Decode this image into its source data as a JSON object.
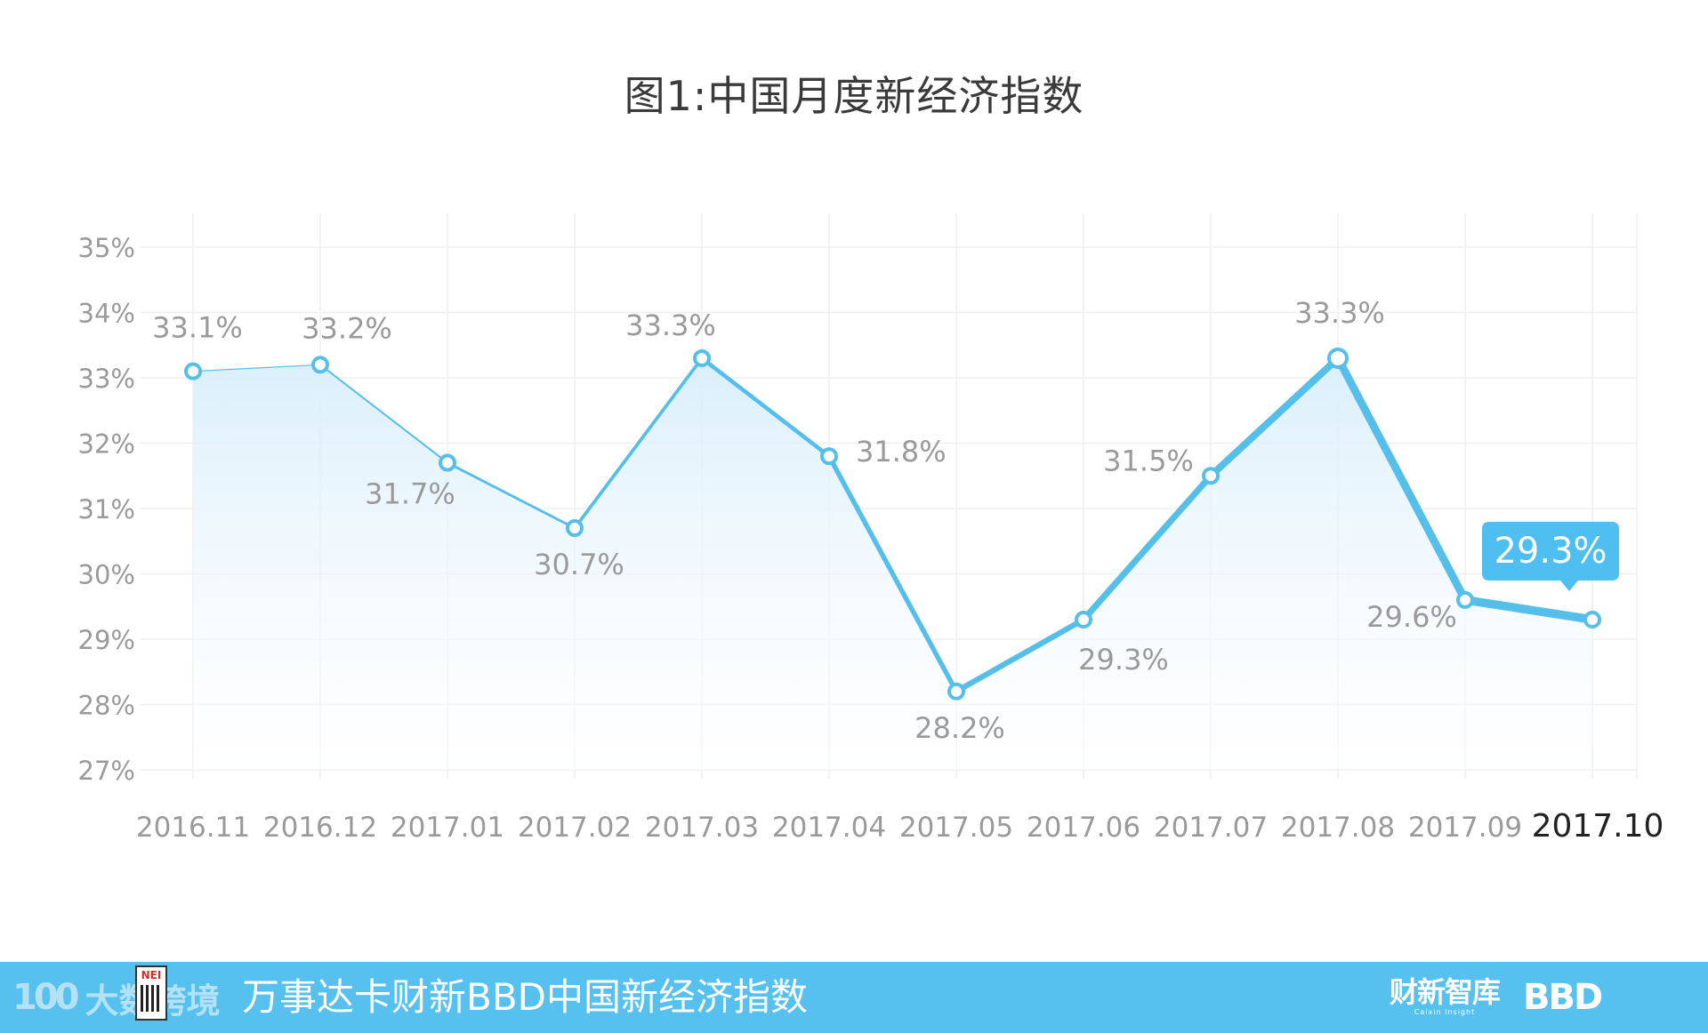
{
  "title": "图1:中国月度新经济指数",
  "colors": {
    "line": "#56bfe9",
    "point_fill": "#ffffff",
    "area_top": "#d8eefb",
    "grid": "#efefef",
    "axis_text": "#9a9a9a",
    "label_text": "#9a9a9a",
    "callout_bg": "#4fbef0",
    "footer_bg": "#56c0ef"
  },
  "chart_data": {
    "type": "line",
    "title": "图1:中国月度新经济指数",
    "categories": [
      "2016.11",
      "2016.12",
      "2017.01",
      "2017.02",
      "2017.03",
      "2017.04",
      "2017.05",
      "2017.06",
      "2017.07",
      "2017.08",
      "2017.09",
      "2017.10"
    ],
    "values": [
      33.1,
      33.2,
      31.7,
      30.7,
      33.3,
      31.8,
      28.2,
      29.3,
      31.5,
      33.3,
      29.6,
      29.3
    ],
    "point_labels": [
      "33.1%",
      "33.2%",
      "31.7%",
      "30.7%",
      "33.3%",
      "31.8%",
      "28.2%",
      "29.3%",
      "31.5%",
      "33.3%",
      "29.6%",
      "29.3%"
    ],
    "y_ticks": [
      "27%",
      "28%",
      "29%",
      "30%",
      "31%",
      "32%",
      "33%",
      "34%",
      "35%"
    ],
    "ylim": [
      27,
      35
    ],
    "highlight_index": 11,
    "grid": true,
    "area_fill": true,
    "line_width_grows": true
  },
  "footer": {
    "watermark_logo": "100",
    "watermark_text": "大数跨境",
    "nei_badge": "NEI",
    "title": "万事达卡财新BBD中国新经济指数",
    "caixin_logo": "财新智库",
    "caixin_sub": "Caixin Insight",
    "bbd_logo": "BBD"
  }
}
